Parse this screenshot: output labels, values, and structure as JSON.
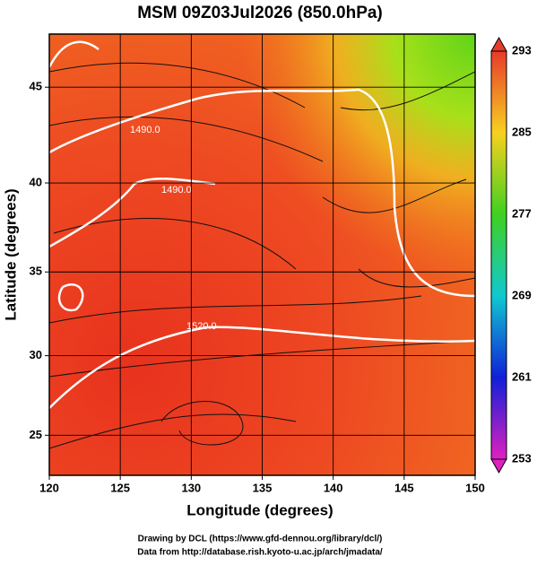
{
  "chart_data": {
    "type": "map",
    "title": "MSM 09Z03Jul2026 (850.0hPa)",
    "x_label": "Longitude (degrees)",
    "y_label": "Latitude  (degrees)",
    "projection": "mercator",
    "xlim": [
      120,
      150
    ],
    "xticks": [
      120,
      125,
      130,
      135,
      140,
      145,
      150
    ],
    "ylim": [
      22.4,
      47.6
    ],
    "yticks": [
      25,
      30,
      35,
      40,
      45
    ],
    "grid": true,
    "contour_labels": [
      "1490.0",
      "1490.0",
      "1520.0"
    ],
    "colorbar": {
      "lim": [
        253,
        293
      ],
      "ticks": [
        253,
        261,
        269,
        277,
        285,
        293
      ]
    }
  },
  "footer": [
    "Drawing by DCL (https://www.gfd-dennou.org/library/dcl/)",
    "Data from http://database.rish.kyoto-u.ac.jp/arch/jmadata/"
  ]
}
